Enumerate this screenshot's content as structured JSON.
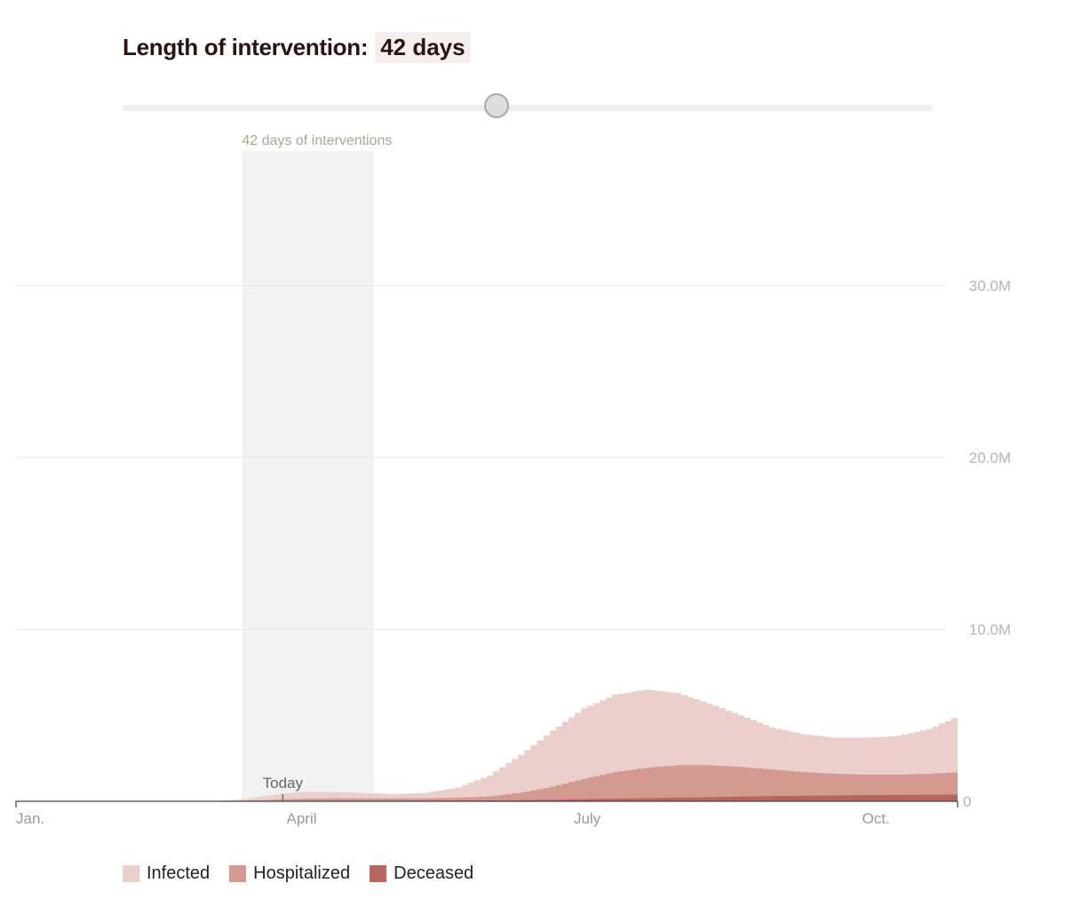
{
  "header": {
    "label": "Length of intervention:",
    "value": "42 days"
  },
  "slider": {
    "value_days": 42,
    "min_days": 0,
    "max_days": 91
  },
  "chart_data": {
    "type": "area",
    "intervention_label": "42 days of interventions",
    "intervention_days": 42,
    "intervention_start_day": 72,
    "today_label": "Today",
    "today_day": 85,
    "x_domain_days": [
      0,
      300
    ],
    "xticks": [
      {
        "label": "Jan.",
        "day": 0
      },
      {
        "label": "April",
        "day": 91
      },
      {
        "label": "July",
        "day": 182
      },
      {
        "label": "Oct.",
        "day": 274
      }
    ],
    "ylim": [
      0,
      33000000
    ],
    "yticks": [
      {
        "label": "30.0M",
        "value": 30000000
      },
      {
        "label": "20.0M",
        "value": 20000000
      },
      {
        "label": "10.0M",
        "value": 10000000
      },
      {
        "label": "0",
        "value": 0
      }
    ],
    "grid": true,
    "legend_position": "bottom-left",
    "x": [
      0,
      60,
      70,
      80,
      90,
      100,
      110,
      120,
      130,
      140,
      150,
      160,
      170,
      180,
      190,
      200,
      210,
      220,
      230,
      240,
      250,
      260,
      270,
      280,
      290,
      300
    ],
    "series": [
      {
        "name": "Infected",
        "color": "#ebcfcb",
        "values": [
          0,
          0,
          100000,
          350000,
          550000,
          550000,
          480000,
          420000,
          500000,
          800000,
          1500000,
          2700000,
          4100000,
          5400000,
          6200000,
          6500000,
          6300000,
          5700000,
          5000000,
          4300000,
          3900000,
          3700000,
          3700000,
          3800000,
          4200000,
          5000000
        ]
      },
      {
        "name": "Hospitalized",
        "color": "#d49a92",
        "values": [
          0,
          0,
          20000,
          80000,
          150000,
          170000,
          170000,
          170000,
          180000,
          210000,
          280000,
          500000,
          850000,
          1300000,
          1700000,
          1950000,
          2100000,
          2100000,
          2000000,
          1850000,
          1700000,
          1600000,
          1550000,
          1550000,
          1600000,
          1700000
        ]
      },
      {
        "name": "Deceased",
        "color": "#b3675f",
        "values": [
          0,
          0,
          0,
          10000,
          20000,
          25000,
          30000,
          35000,
          40000,
          45000,
          55000,
          70000,
          90000,
          120000,
          150000,
          180000,
          210000,
          240000,
          270000,
          300000,
          320000,
          340000,
          360000,
          370000,
          380000,
          390000
        ]
      }
    ]
  }
}
